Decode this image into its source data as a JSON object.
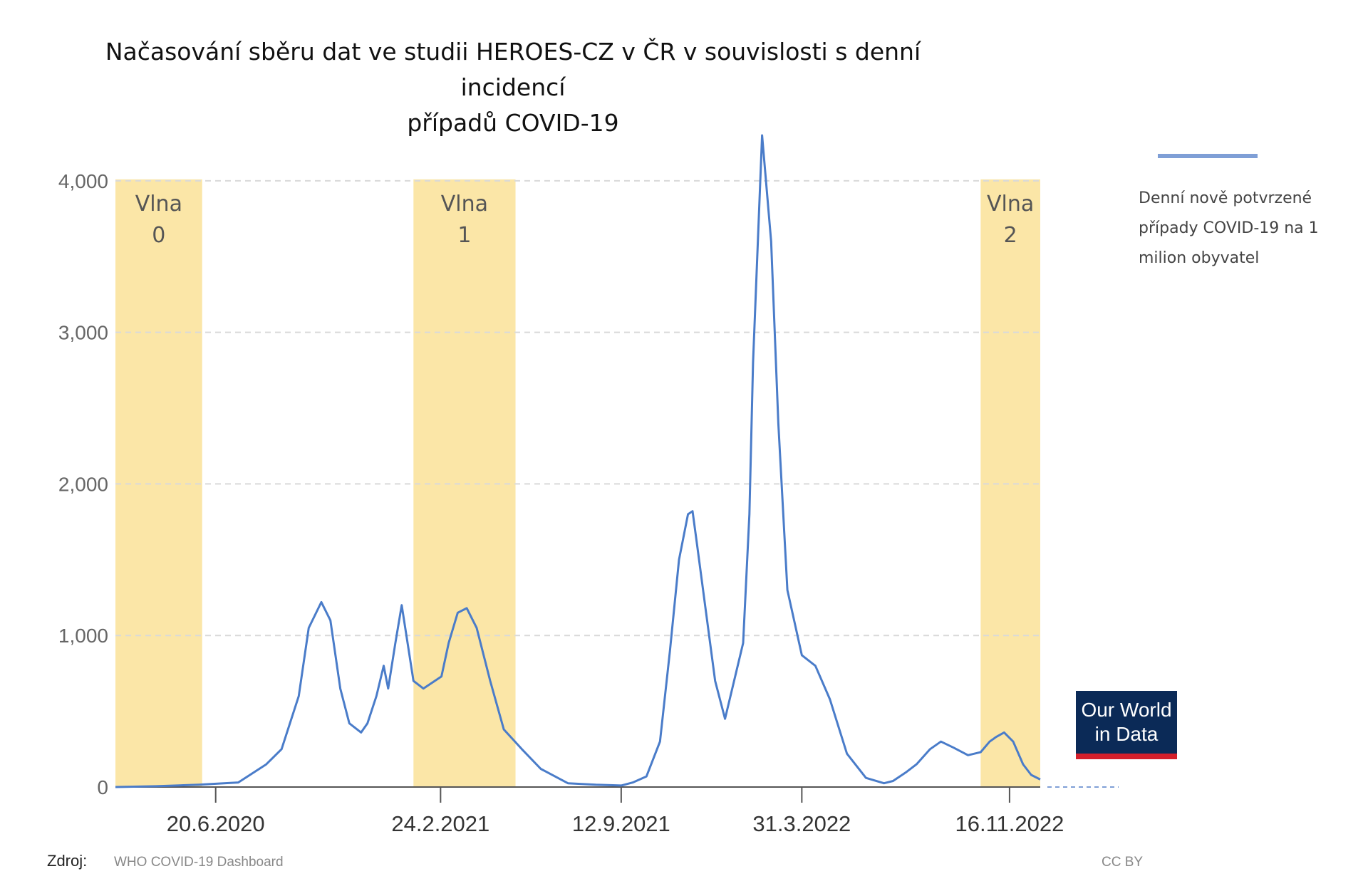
{
  "title": {
    "line1": "Načasování sběru dat ve studii HEROES-CZ v ČR v souvislosti s denní incidencí",
    "line2": "případů COVID-19"
  },
  "legend": {
    "label": "Denní nově potvrzené případy COVID-19 na 1 milion obyvatel",
    "color": "#7f9fd6"
  },
  "logo": {
    "line1": "Our World",
    "line2": "in Data",
    "bg": "#0b2a57",
    "accent": "#d41f2b"
  },
  "source": {
    "label": "Zdroj:",
    "value": "WHO COVID-19 Dashboard"
  },
  "license": "CC BY",
  "chart_data": {
    "type": "line",
    "title": "Načasování sběru dat ve studii HEROES-CZ v ČR v souvislosti s denní incidencí případů COVID-19",
    "xlabel": "",
    "ylabel": "",
    "ylim": [
      0,
      4300
    ],
    "yticks": [
      0,
      1000,
      2000,
      3000,
      4000
    ],
    "ytick_labels": [
      "0",
      "1,000",
      "2,000",
      "3,000",
      "4,000"
    ],
    "xlim": [
      "2020-03-01",
      "2022-12-20"
    ],
    "xticks": [
      "2020-06-20",
      "2021-02-24",
      "2021-09-12",
      "2022-03-31",
      "2022-11-16"
    ],
    "xtick_labels": [
      "20.6.2020",
      "24.2.2021",
      "12.9.2021",
      "31.3.2022",
      "16.11.2022"
    ],
    "grid": "horizontal dashed",
    "line_color": "#4a7cc9",
    "highlight_color": "#fbe6a7",
    "bands": [
      {
        "label1": "Vlna",
        "label2": "0",
        "start": "2020-03-01",
        "end": "2020-06-05"
      },
      {
        "label1": "Vlna",
        "label2": "1",
        "start": "2021-01-25",
        "end": "2021-05-18"
      },
      {
        "label1": "Vlna",
        "label2": "2",
        "start": "2022-10-15",
        "end": "2022-12-20"
      }
    ],
    "series": [
      {
        "name": "Denní nově potvrzené případy COVID-19 na 1 milion obyvatel",
        "x": [
          "2020-03-01",
          "2020-04-15",
          "2020-06-01",
          "2020-07-15",
          "2020-08-15",
          "2020-09-01",
          "2020-09-20",
          "2020-10-01",
          "2020-10-15",
          "2020-10-25",
          "2020-11-05",
          "2020-11-15",
          "2020-11-28",
          "2020-12-05",
          "2020-12-15",
          "2020-12-23",
          "2020-12-28",
          "2021-01-05",
          "2021-01-12",
          "2021-01-25",
          "2021-02-05",
          "2021-02-25",
          "2021-03-05",
          "2021-03-15",
          "2021-03-25",
          "2021-04-05",
          "2021-04-20",
          "2021-05-05",
          "2021-05-25",
          "2021-06-15",
          "2021-07-15",
          "2021-08-15",
          "2021-09-12",
          "2021-09-25",
          "2021-10-10",
          "2021-10-25",
          "2021-11-05",
          "2021-11-15",
          "2021-11-25",
          "2021-11-30",
          "2021-12-05",
          "2021-12-15",
          "2021-12-25",
          "2022-01-05",
          "2022-01-15",
          "2022-01-25",
          "2022-02-01",
          "2022-02-05",
          "2022-02-15",
          "2022-02-25",
          "2022-03-05",
          "2022-03-15",
          "2022-03-31",
          "2022-04-15",
          "2022-05-01",
          "2022-05-20",
          "2022-06-10",
          "2022-06-30",
          "2022-07-10",
          "2022-07-25",
          "2022-08-05",
          "2022-08-20",
          "2022-09-01",
          "2022-09-15",
          "2022-10-01",
          "2022-10-15",
          "2022-10-25",
          "2022-11-01",
          "2022-11-10",
          "2022-11-20",
          "2022-12-01",
          "2022-12-10",
          "2022-12-20"
        ],
        "values": [
          0,
          5,
          15,
          30,
          150,
          250,
          600,
          1050,
          1220,
          1100,
          650,
          420,
          360,
          420,
          600,
          800,
          650,
          950,
          1200,
          700,
          650,
          730,
          950,
          1150,
          1180,
          1050,
          700,
          380,
          250,
          120,
          25,
          15,
          10,
          30,
          70,
          300,
          900,
          1500,
          1800,
          1820,
          1600,
          1150,
          700,
          450,
          700,
          950,
          1800,
          2800,
          4300,
          3600,
          2400,
          1300,
          870,
          800,
          580,
          220,
          60,
          25,
          40,
          100,
          150,
          250,
          300,
          260,
          210,
          230,
          300,
          330,
          360,
          300,
          150,
          80,
          50
        ]
      }
    ]
  }
}
